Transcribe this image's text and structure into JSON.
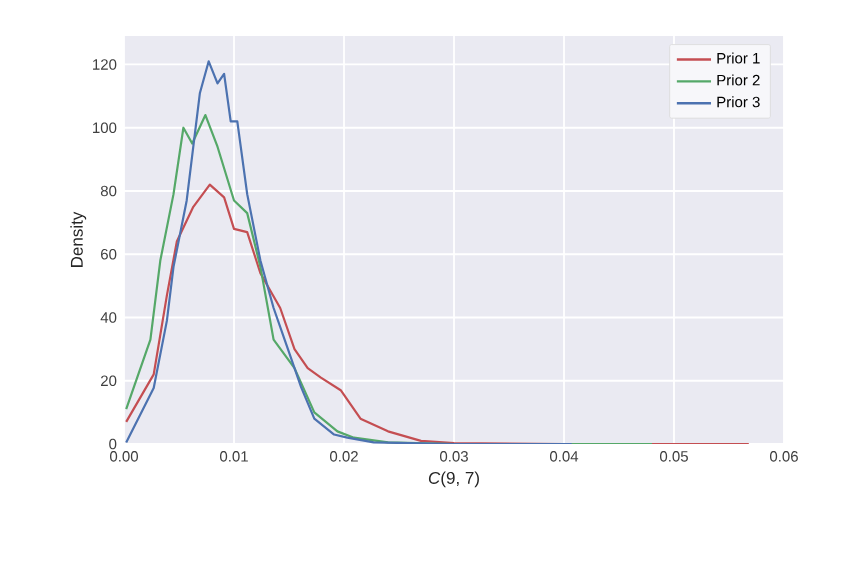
{
  "chart_data": {
    "type": "line",
    "xlabel": "*C*(9, 7)",
    "ylabel": "Density",
    "xlim": [
      0,
      0.06
    ],
    "ylim": [
      0,
      129
    ],
    "xticks": [
      {
        "value": 0,
        "label": "0.00"
      },
      {
        "value": 0.01,
        "label": "0.01"
      },
      {
        "value": 0.02,
        "label": "0.02"
      },
      {
        "value": 0.03,
        "label": "0.03"
      },
      {
        "value": 0.04,
        "label": "0.04"
      },
      {
        "value": 0.05,
        "label": "0.05"
      },
      {
        "value": 0.06,
        "label": "0.06"
      }
    ],
    "yticks": [
      0,
      20,
      40,
      60,
      80,
      100,
      120
    ],
    "grid": true,
    "legend": "top right",
    "marker": "none",
    "line_style": "solid",
    "series": [
      {
        "name": "Prior 1",
        "color": "#c44e52",
        "x": [
          0.0002,
          0.0027,
          0.0039,
          0.0048,
          0.0063,
          0.0078,
          0.0091,
          0.01,
          0.0112,
          0.0124,
          0.0142,
          0.0155,
          0.0167,
          0.0179,
          0.0197,
          0.0215,
          0.024,
          0.027,
          0.03,
          0.04,
          0.05,
          0.0568
        ],
        "values": [
          7,
          22,
          47,
          64,
          75,
          82,
          78,
          68,
          67,
          54,
          43,
          30,
          24,
          21,
          17,
          8,
          4,
          1,
          0.3,
          0,
          0,
          0
        ]
      },
      {
        "name": "Prior 2",
        "color": "#55a868",
        "x": [
          0.0002,
          0.0024,
          0.0033,
          0.0045,
          0.0054,
          0.0062,
          0.0074,
          0.0085,
          0.01,
          0.0112,
          0.0124,
          0.0136,
          0.0155,
          0.0173,
          0.0194,
          0.0209,
          0.024,
          0.03,
          0.04,
          0.048
        ],
        "values": [
          11,
          33,
          58,
          79,
          100,
          95,
          104,
          94,
          77,
          73,
          56,
          33,
          24,
          10,
          4,
          2,
          0.5,
          0,
          0,
          0
        ]
      },
      {
        "name": "Prior 3",
        "color": "#4c72b0",
        "x": [
          0.0002,
          0.0027,
          0.0039,
          0.0045,
          0.0057,
          0.0069,
          0.0077,
          0.0085,
          0.0091,
          0.0097,
          0.0103,
          0.0112,
          0.0124,
          0.0136,
          0.0148,
          0.0161,
          0.0173,
          0.0191,
          0.0203,
          0.0227,
          0.03,
          0.0407
        ],
        "values": [
          0.5,
          17.7,
          39,
          56,
          77,
          111,
          121,
          114,
          117,
          102,
          102,
          79,
          58,
          43,
          31,
          18,
          8,
          3,
          2,
          0.5,
          0,
          0
        ]
      }
    ]
  }
}
